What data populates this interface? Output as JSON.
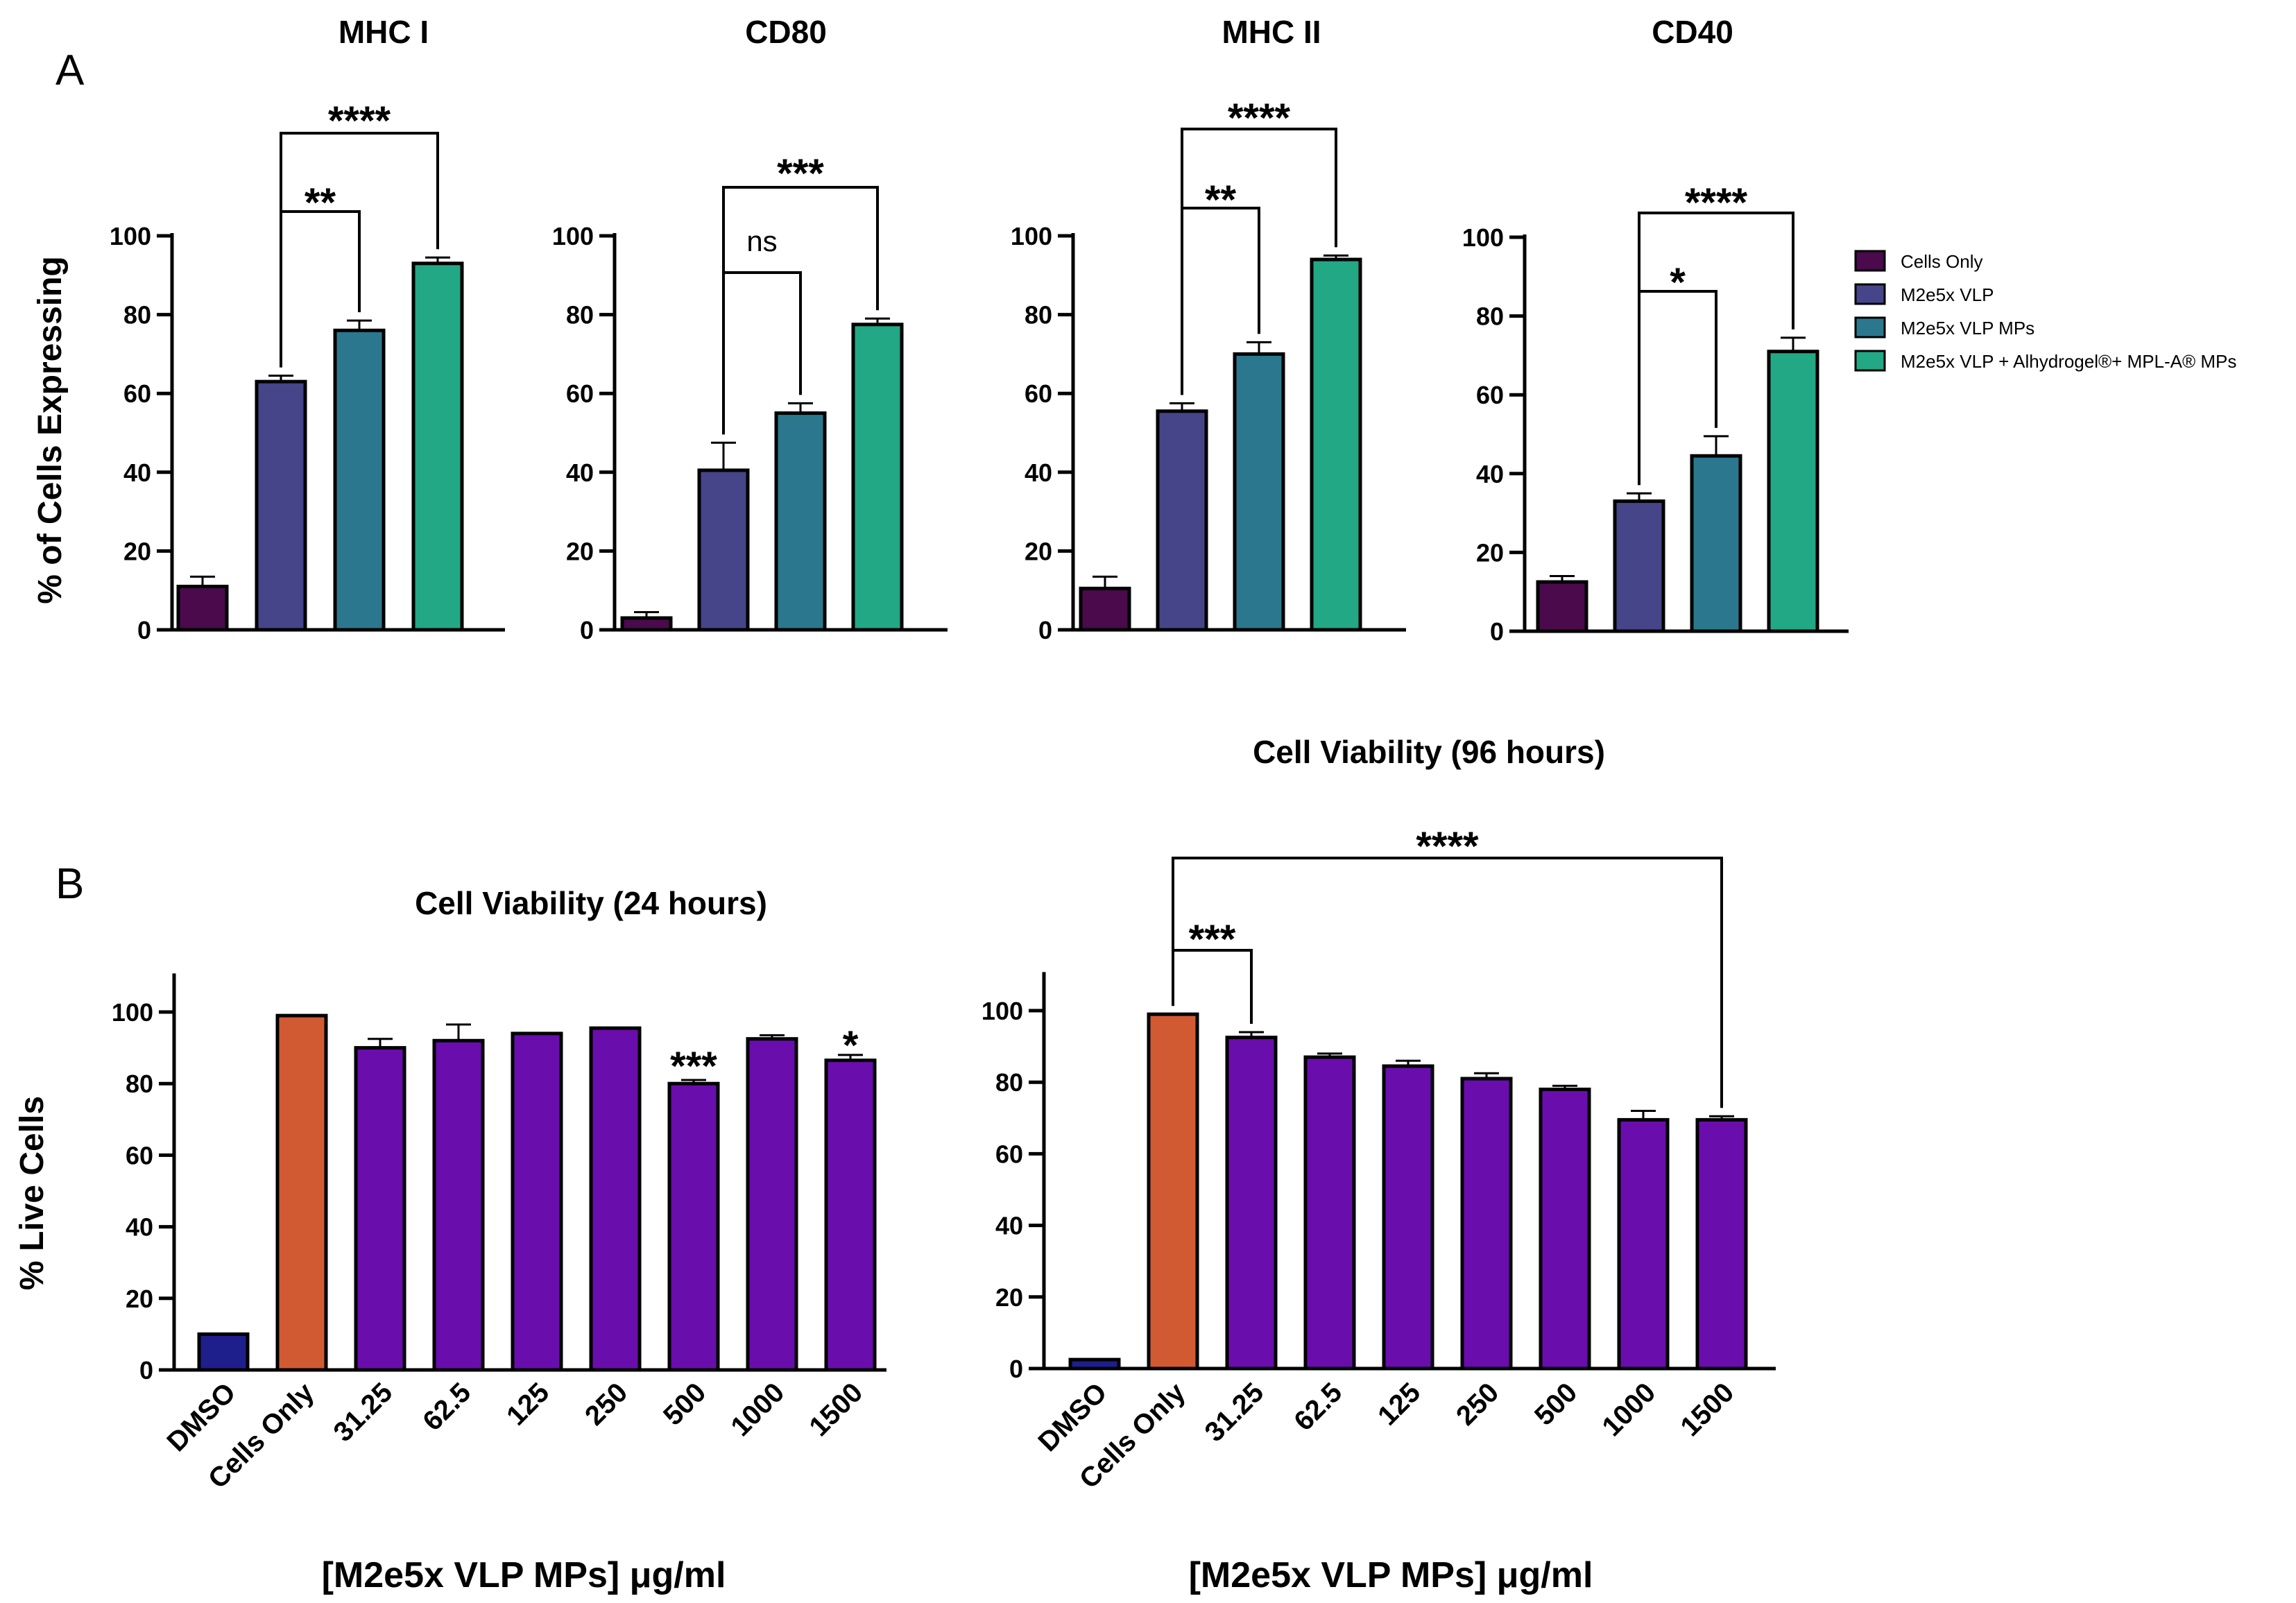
{
  "panel_labels": [
    "A",
    "B"
  ],
  "legend": [
    {
      "label": "Cells Only",
      "color": "#4a0a4c"
    },
    {
      "label": "M2e5x VLP",
      "color": "#464589"
    },
    {
      "label": "M2e5x VLP MPs",
      "color": "#2b788e"
    },
    {
      "label": "M2e5x VLP + Alhydrogel®+ MPL-A® MPs",
      "color": "#22a884"
    }
  ],
  "chart_data": [
    {
      "type": "bar",
      "panel": "A",
      "title": "MHC I",
      "ylabel": "% of Cells Expressing",
      "xlabel": "",
      "ylim": [
        0,
        100
      ],
      "yticks": [
        "0",
        "20",
        "40",
        "60",
        "80",
        "100"
      ],
      "categories": [
        "Cells Only",
        "M2e5x VLP",
        "M2e5x VLP MPs",
        "M2e5x VLP + Alhydrogel®+ MPL-A® MPs"
      ],
      "values": [
        11,
        63,
        76,
        93
      ],
      "errors": [
        2.5,
        1.5,
        2.5,
        1.5
      ],
      "colors": [
        "#4a0a4c",
        "#464589",
        "#2b788e",
        "#22a884"
      ],
      "comparisons": [
        {
          "from": 1,
          "to": 2,
          "label": "**"
        },
        {
          "from": 1,
          "to": 3,
          "label": "****"
        }
      ]
    },
    {
      "type": "bar",
      "panel": "A",
      "title": "CD80",
      "ylabel": "",
      "xlabel": "",
      "ylim": [
        0,
        100
      ],
      "yticks": [
        "0",
        "20",
        "40",
        "60",
        "80",
        "100"
      ],
      "categories": [
        "Cells Only",
        "M2e5x VLP",
        "M2e5x VLP MPs",
        "M2e5x VLP + Alhydrogel®+ MPL-A® MPs"
      ],
      "values": [
        3,
        40.5,
        55,
        77.5
      ],
      "errors": [
        1.5,
        7,
        2.5,
        1.5
      ],
      "colors": [
        "#4a0a4c",
        "#464589",
        "#2b788e",
        "#22a884"
      ],
      "comparisons": [
        {
          "from": 1,
          "to": 2,
          "label": "ns"
        },
        {
          "from": 1,
          "to": 3,
          "label": "***"
        }
      ]
    },
    {
      "type": "bar",
      "panel": "A",
      "title": "MHC II",
      "ylabel": "",
      "xlabel": "",
      "ylim": [
        0,
        100
      ],
      "yticks": [
        "0",
        "20",
        "40",
        "60",
        "80",
        "100"
      ],
      "categories": [
        "Cells Only",
        "M2e5x VLP",
        "M2e5x VLP MPs",
        "M2e5x VLP + Alhydrogel®+ MPL-A® MPs"
      ],
      "values": [
        10.5,
        55.5,
        70,
        94
      ],
      "errors": [
        3,
        2,
        3,
        1
      ],
      "colors": [
        "#4a0a4c",
        "#464589",
        "#2b788e",
        "#22a884"
      ],
      "comparisons": [
        {
          "from": 1,
          "to": 2,
          "label": "**"
        },
        {
          "from": 1,
          "to": 3,
          "label": "****"
        }
      ]
    },
    {
      "type": "bar",
      "panel": "A",
      "title": "CD40",
      "ylabel": "",
      "xlabel": "",
      "ylim": [
        0,
        100
      ],
      "yticks": [
        "0",
        "20",
        "40",
        "60",
        "80",
        "100"
      ],
      "categories": [
        "Cells Only",
        "M2e5x VLP",
        "M2e5x VLP MPs",
        "M2e5x VLP + Alhydrogel®+ MPL-A® MPs"
      ],
      "values": [
        12.5,
        33,
        44.5,
        71
      ],
      "errors": [
        1.5,
        2,
        5,
        3.5
      ],
      "colors": [
        "#4a0a4c",
        "#464589",
        "#2b788e",
        "#22a884"
      ],
      "comparisons": [
        {
          "from": 1,
          "to": 2,
          "label": "*"
        },
        {
          "from": 1,
          "to": 3,
          "label": "****"
        }
      ]
    },
    {
      "type": "bar",
      "panel": "B",
      "title": "Cell Viability (24 hours)",
      "ylabel": "% Live Cells",
      "xlabel": "[M2e5x VLP MPs] μg/ml",
      "ylim": [
        0,
        110
      ],
      "yticks": [
        "0",
        "20",
        "40",
        "60",
        "80",
        "100"
      ],
      "categories": [
        "DMSO",
        "Cells Only",
        "31.25",
        "62.5",
        "125",
        "250",
        "500",
        "1000",
        "1500"
      ],
      "values": [
        10,
        99,
        90,
        92,
        94,
        95.5,
        80,
        92.5,
        86.5
      ],
      "errors": [
        0,
        0,
        2.5,
        4.5,
        0,
        0,
        1,
        1,
        1.5
      ],
      "colors": [
        "#1e1e8c",
        "#d25a32",
        "#6a0dad",
        "#6a0dad",
        "#6a0dad",
        "#6a0dad",
        "#6a0dad",
        "#6a0dad",
        "#6a0dad"
      ],
      "annotations": [
        {
          "index": 6,
          "label": "***"
        },
        {
          "index": 8,
          "label": "*"
        }
      ]
    },
    {
      "type": "bar",
      "panel": "B",
      "title": "Cell Viability (96 hours)",
      "ylabel": "",
      "xlabel": "[M2e5x VLP MPs] μg/ml",
      "ylim": [
        0,
        110
      ],
      "yticks": [
        "0",
        "20",
        "40",
        "60",
        "80",
        "100"
      ],
      "categories": [
        "DMSO",
        "Cells Only",
        "31.25",
        "62.5",
        "125",
        "250",
        "500",
        "1000",
        "1500"
      ],
      "values": [
        2.5,
        99,
        92.5,
        87,
        84.5,
        81,
        78,
        69.5,
        69.5
      ],
      "errors": [
        0,
        0,
        1.5,
        1,
        1.5,
        1.5,
        1,
        2.5,
        1
      ],
      "colors": [
        "#1e1e8c",
        "#d25a32",
        "#6a0dad",
        "#6a0dad",
        "#6a0dad",
        "#6a0dad",
        "#6a0dad",
        "#6a0dad",
        "#6a0dad"
      ],
      "comparisons": [
        {
          "from": 1,
          "to": 2,
          "label": "***"
        },
        {
          "from": 1,
          "to": 8,
          "label": "****"
        }
      ]
    }
  ]
}
